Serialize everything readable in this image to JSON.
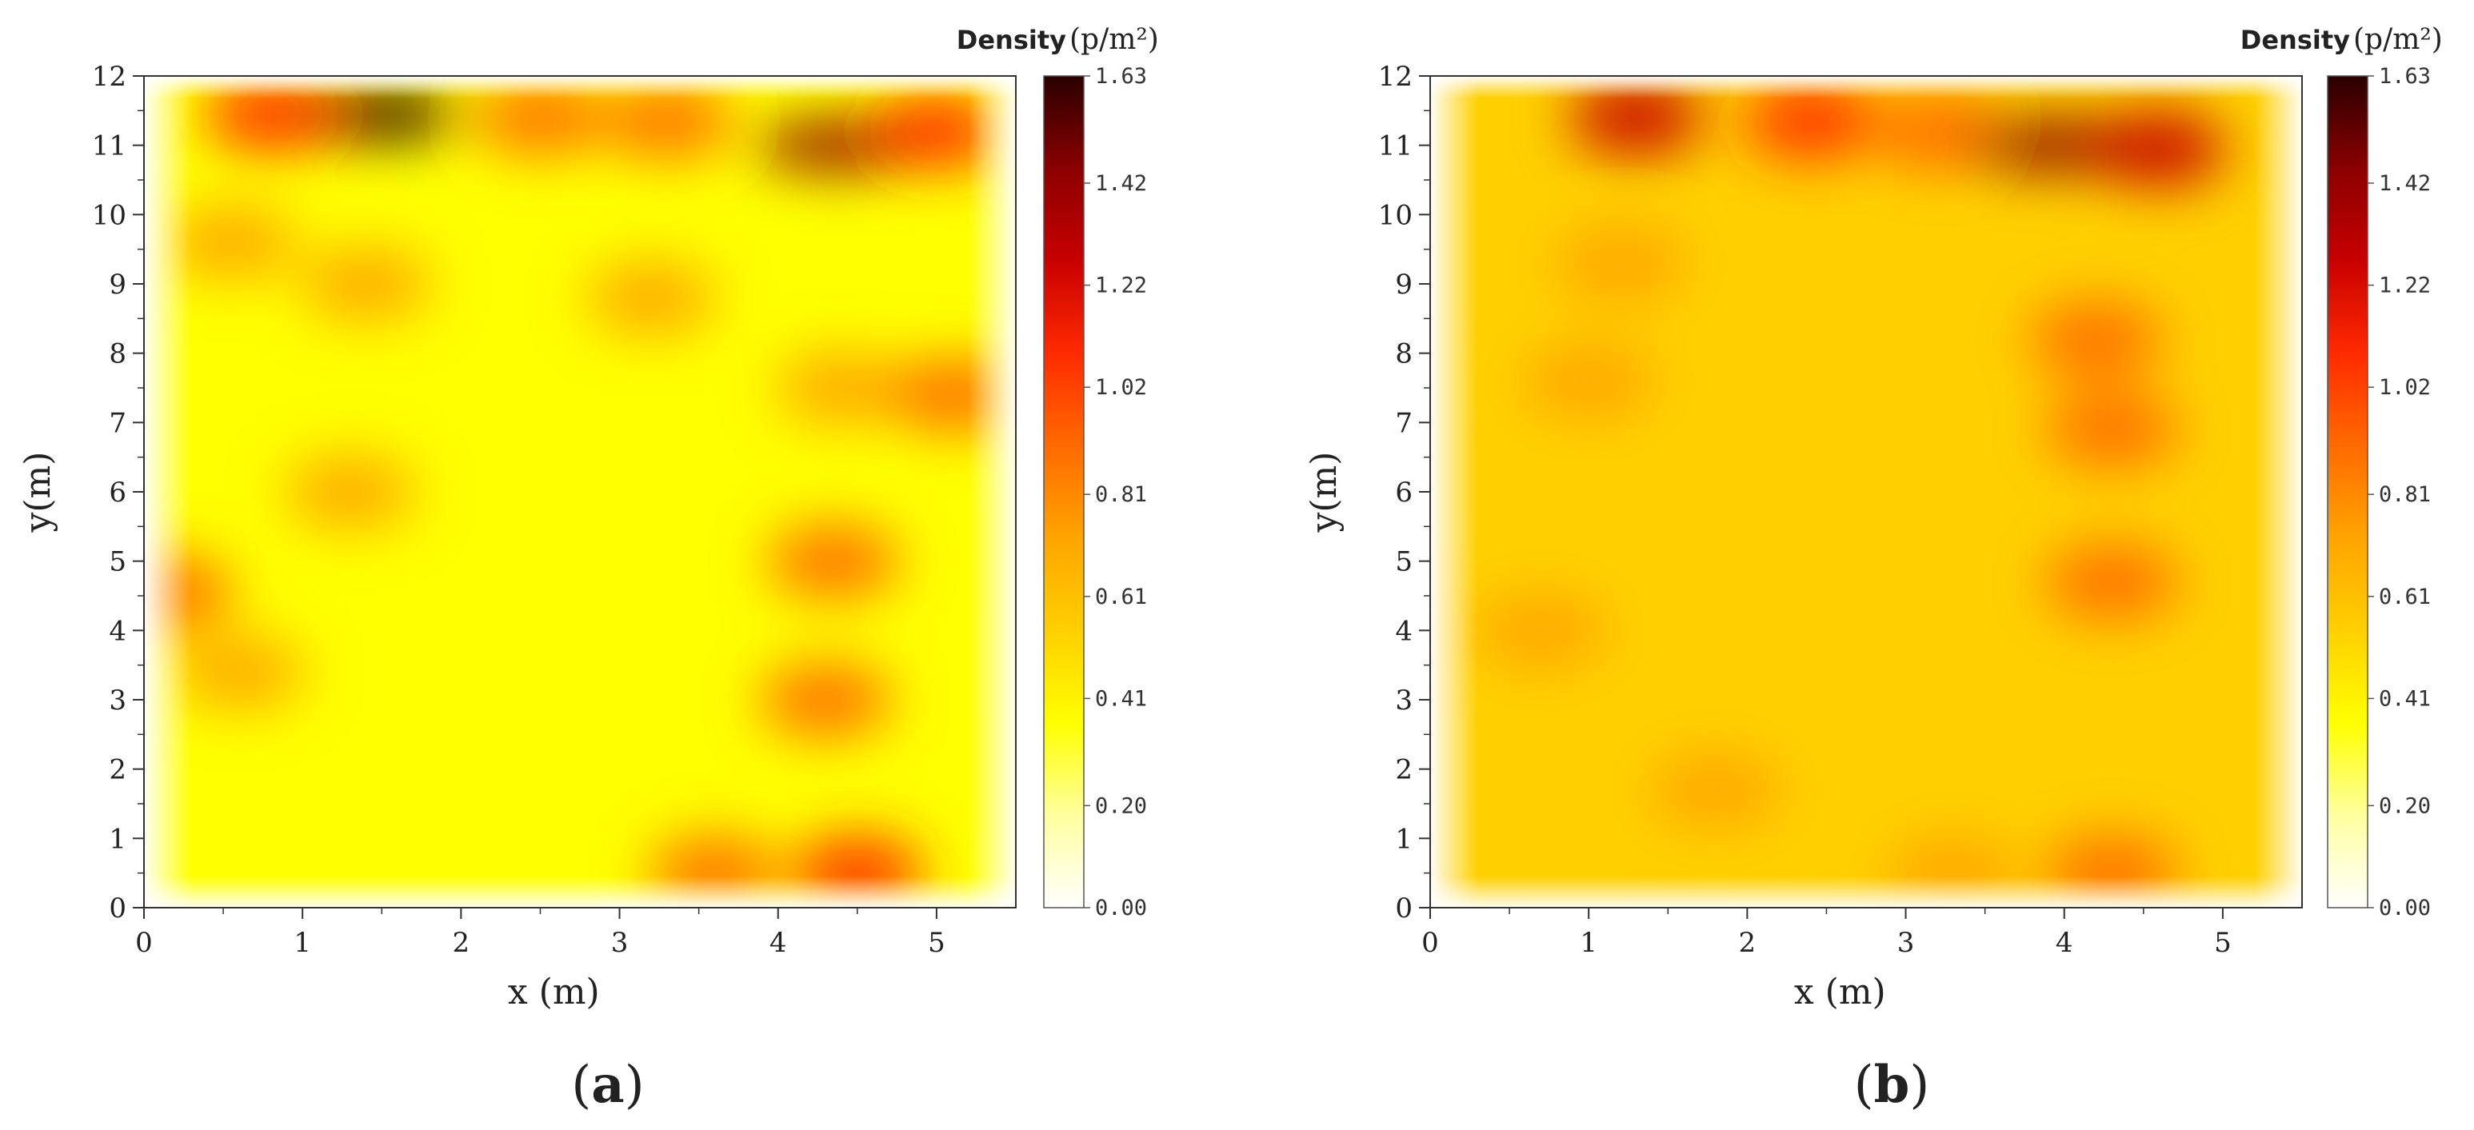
{
  "chart_data": [
    {
      "type": "heatmap",
      "panel_label": {
        "open": "(",
        "letter": "a",
        "close": ")"
      },
      "xlabel": "x (m)",
      "ylabel": "y(m)",
      "xlim": [
        0,
        5.5
      ],
      "ylim": [
        0,
        12
      ],
      "xticks": [
        "0",
        "1",
        "2",
        "3",
        "4",
        "5"
      ],
      "yticks": [
        "0",
        "1",
        "2",
        "3",
        "4",
        "5",
        "6",
        "7",
        "8",
        "9",
        "10",
        "11",
        "12"
      ],
      "colorbar": {
        "title": "Density",
        "unit": "(p/m²)",
        "ticks": [
          "0.00",
          "0.20",
          "0.41",
          "0.61",
          "0.81",
          "1.02",
          "1.22",
          "1.42",
          "1.63"
        ],
        "range": [
          0,
          1.63
        ],
        "colors": [
          "#ffffff",
          "#ffffa0",
          "#ffff00",
          "#ffd000",
          "#ffa500",
          "#ff6a00",
          "#ff2a00",
          "#c80000",
          "#8b0000",
          "#2b0000"
        ]
      },
      "background_density": 0.44,
      "hotspots": [
        {
          "x": 1.45,
          "y": 11.45,
          "density": 1.63
        },
        {
          "x": 0.8,
          "y": 11.45,
          "density": 1.0
        },
        {
          "x": 2.5,
          "y": 11.4,
          "density": 0.95
        },
        {
          "x": 3.3,
          "y": 11.35,
          "density": 0.9
        },
        {
          "x": 4.4,
          "y": 11.0,
          "density": 1.5
        },
        {
          "x": 5.0,
          "y": 11.2,
          "density": 1.1
        },
        {
          "x": 0.55,
          "y": 9.6,
          "density": 0.78
        },
        {
          "x": 1.4,
          "y": 9.0,
          "density": 0.72
        },
        {
          "x": 3.2,
          "y": 8.8,
          "density": 0.72
        },
        {
          "x": 4.4,
          "y": 7.5,
          "density": 0.8
        },
        {
          "x": 5.1,
          "y": 7.4,
          "density": 0.9
        },
        {
          "x": 1.3,
          "y": 6.0,
          "density": 0.7
        },
        {
          "x": 4.35,
          "y": 5.0,
          "density": 0.95
        },
        {
          "x": 4.3,
          "y": 3.0,
          "density": 0.85
        },
        {
          "x": 0.15,
          "y": 4.55,
          "density": 0.88
        },
        {
          "x": 0.6,
          "y": 3.4,
          "density": 0.68
        },
        {
          "x": 4.5,
          "y": 0.5,
          "density": 1.05
        },
        {
          "x": 3.6,
          "y": 0.5,
          "density": 0.92
        }
      ]
    },
    {
      "type": "heatmap",
      "panel_label": {
        "open": "(",
        "letter": "b",
        "close": ")"
      },
      "xlabel": "x (m)",
      "ylabel": "y(m)",
      "xlim": [
        0,
        5.5
      ],
      "ylim": [
        0,
        12
      ],
      "xticks": [
        "0",
        "1",
        "2",
        "3",
        "4",
        "5"
      ],
      "yticks": [
        "0",
        "1",
        "2",
        "3",
        "4",
        "5",
        "6",
        "7",
        "8",
        "9",
        "10",
        "11",
        "12"
      ],
      "colorbar": {
        "title": "Density",
        "unit": "(p/m²)",
        "ticks": [
          "0.00",
          "0.20",
          "0.41",
          "0.61",
          "0.81",
          "1.02",
          "1.22",
          "1.42",
          "1.63"
        ],
        "range": [
          0,
          1.63
        ],
        "colors": [
          "#ffffff",
          "#ffffa0",
          "#ffff00",
          "#ffd000",
          "#ffa500",
          "#ff6a00",
          "#ff2a00",
          "#c80000",
          "#8b0000",
          "#2b0000"
        ]
      },
      "background_density": 0.5,
      "hotspots": [
        {
          "x": 1.3,
          "y": 11.4,
          "density": 1.25
        },
        {
          "x": 2.4,
          "y": 11.35,
          "density": 1.0
        },
        {
          "x": 3.2,
          "y": 11.2,
          "density": 0.98
        },
        {
          "x": 3.95,
          "y": 11.0,
          "density": 1.45
        },
        {
          "x": 4.6,
          "y": 10.95,
          "density": 1.25
        },
        {
          "x": 1.2,
          "y": 9.3,
          "density": 0.7
        },
        {
          "x": 4.2,
          "y": 8.2,
          "density": 0.85
        },
        {
          "x": 4.3,
          "y": 6.9,
          "density": 0.92
        },
        {
          "x": 1.0,
          "y": 7.6,
          "density": 0.7
        },
        {
          "x": 4.3,
          "y": 4.7,
          "density": 0.92
        },
        {
          "x": 1.8,
          "y": 1.7,
          "density": 0.72
        },
        {
          "x": 4.3,
          "y": 0.5,
          "density": 0.9
        },
        {
          "x": 3.3,
          "y": 0.5,
          "density": 0.75
        },
        {
          "x": 0.7,
          "y": 4.0,
          "density": 0.66
        }
      ]
    }
  ]
}
